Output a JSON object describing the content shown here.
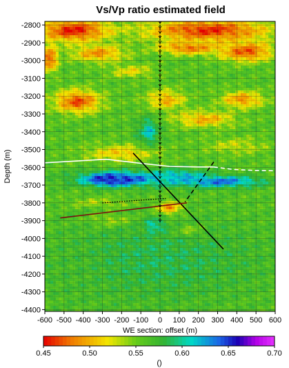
{
  "chart_data": {
    "type": "heatmap",
    "title": "Vs/Vp ratio estimated field",
    "xlabel": "WE section: offset (m)",
    "ylabel": "Depth (m)",
    "xlim": [
      -600,
      600
    ],
    "ylim": [
      -4410,
      -2780
    ],
    "x_ticks": [
      -600,
      -500,
      -400,
      -300,
      -200,
      -100,
      0,
      100,
      200,
      300,
      400,
      500,
      600
    ],
    "y_ticks": [
      -2800,
      -2900,
      -3000,
      -3100,
      -3200,
      -3300,
      -3400,
      -3500,
      -3600,
      -3700,
      -3800,
      -3900,
      -4000,
      -4100,
      -4200,
      -4300,
      -4400
    ],
    "grid": true,
    "colorbar": {
      "label": "()",
      "min": 0.45,
      "max": 0.7,
      "ticks": [
        0.45,
        0.5,
        0.55,
        0.6,
        0.65,
        0.7
      ],
      "tick_labels": [
        "0.45",
        "0.50",
        "0.55",
        "0.60",
        "0.65",
        "0.70"
      ],
      "colors": [
        "#e60000",
        "#f07a00",
        "#f2e600",
        "#66cc1a",
        "#33b333",
        "#00d9c7",
        "#1a66e6",
        "#1a00b3",
        "#b300e6",
        "#e633ff"
      ],
      "color_stops": [
        0.45,
        0.48,
        0.52,
        0.55,
        0.58,
        0.61,
        0.64,
        0.66,
        0.68,
        0.7
      ]
    },
    "field": {
      "background": 0.56,
      "anomalies": [
        {
          "x": -450,
          "y": -2830,
          "rx": 200,
          "ry": 70,
          "v": 0.455
        },
        {
          "x": 250,
          "y": -2830,
          "rx": 350,
          "ry": 70,
          "v": 0.46
        },
        {
          "x": 450,
          "y": -2950,
          "rx": 150,
          "ry": 60,
          "v": 0.47
        },
        {
          "x": -580,
          "y": -2990,
          "rx": 50,
          "ry": 80,
          "v": 0.47
        },
        {
          "x": -320,
          "y": -2960,
          "rx": 150,
          "ry": 50,
          "v": 0.49
        },
        {
          "x": 150,
          "y": -2930,
          "rx": 170,
          "ry": 40,
          "v": 0.48
        },
        {
          "x": -150,
          "y": -3060,
          "rx": 130,
          "ry": 40,
          "v": 0.52
        },
        {
          "x": -430,
          "y": -3230,
          "rx": 130,
          "ry": 70,
          "v": 0.47
        },
        {
          "x": 30,
          "y": -3220,
          "rx": 110,
          "ry": 60,
          "v": 0.5
        },
        {
          "x": 430,
          "y": -3220,
          "rx": 120,
          "ry": 50,
          "v": 0.49
        },
        {
          "x": 230,
          "y": -3330,
          "rx": 170,
          "ry": 50,
          "v": 0.5
        },
        {
          "x": -200,
          "y": -3520,
          "rx": 200,
          "ry": 50,
          "v": 0.51
        },
        {
          "x": 400,
          "y": -3480,
          "rx": 180,
          "ry": 50,
          "v": 0.53
        },
        {
          "x": -60,
          "y": -3400,
          "rx": 60,
          "ry": 80,
          "v": 0.61
        },
        {
          "x": -260,
          "y": -3670,
          "rx": 100,
          "ry": 30,
          "v": 0.695
        },
        {
          "x": -200,
          "y": -3665,
          "rx": 250,
          "ry": 45,
          "v": 0.65
        },
        {
          "x": 300,
          "y": -3680,
          "rx": 250,
          "ry": 35,
          "v": 0.64
        },
        {
          "x": 100,
          "y": -3650,
          "rx": 150,
          "ry": 40,
          "v": 0.62
        },
        {
          "x": -250,
          "y": -3900,
          "rx": 120,
          "ry": 40,
          "v": 0.52
        },
        {
          "x": -300,
          "y": -3800,
          "rx": 180,
          "ry": 30,
          "v": 0.53
        },
        {
          "x": 50,
          "y": -3830,
          "rx": 70,
          "ry": 40,
          "v": 0.47
        },
        {
          "x": 150,
          "y": -3960,
          "rx": 80,
          "ry": 40,
          "v": 0.5
        },
        {
          "x": -30,
          "y": -3930,
          "rx": 50,
          "ry": 40,
          "v": 0.63
        },
        {
          "x": 0,
          "y": -4120,
          "rx": 600,
          "ry": 250,
          "v": 0.585
        },
        {
          "x": -450,
          "y": -4200,
          "rx": 150,
          "ry": 200,
          "v": 0.57
        }
      ]
    },
    "overlay_lines": [
      {
        "style": "solid",
        "color": "#ffffff",
        "points": [
          [
            -600,
            -3575
          ],
          [
            -280,
            -3555
          ],
          [
            -100,
            -3578
          ],
          [
            50,
            -3595
          ],
          [
            200,
            -3598
          ],
          [
            280,
            -3598
          ]
        ]
      },
      {
        "style": "dashed",
        "color": "#ffffff",
        "points": [
          [
            280,
            -3598
          ],
          [
            380,
            -3612
          ],
          [
            500,
            -3618
          ],
          [
            600,
            -3620
          ]
        ]
      },
      {
        "style": "solid",
        "color": "#000000",
        "points": [
          [
            -140,
            -3520
          ],
          [
            330,
            -4060
          ]
        ]
      },
      {
        "style": "dashed",
        "color": "#000000",
        "points": [
          [
            280,
            -3570
          ],
          [
            130,
            -3795
          ]
        ]
      },
      {
        "style": "dotted",
        "color": "#000000",
        "points": [
          [
            -300,
            -3800
          ],
          [
            30,
            -3775
          ]
        ]
      },
      {
        "style": "solid",
        "color": "#7a1010",
        "points": [
          [
            -520,
            -3885
          ],
          [
            140,
            -3800
          ]
        ]
      },
      {
        "style": "well",
        "color": "#000000",
        "points": [
          [
            0,
            -2780
          ],
          [
            0,
            -3910
          ]
        ]
      }
    ]
  }
}
